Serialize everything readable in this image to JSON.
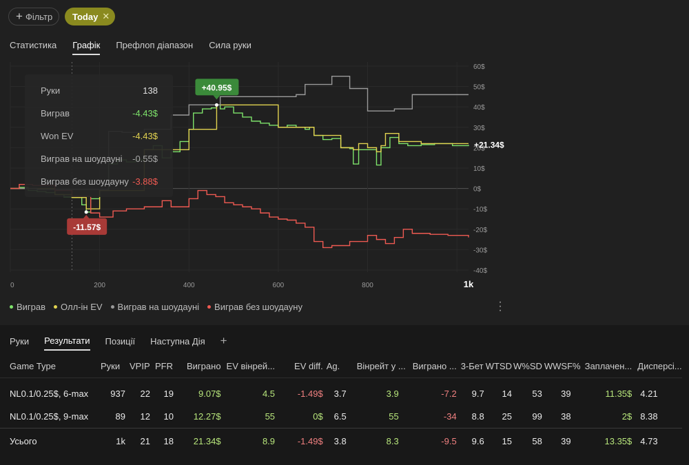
{
  "filters": {
    "add_label": "Фільтр",
    "active_chip": "Today"
  },
  "top_tabs": [
    "Статистика",
    "Графік",
    "Префлоп діапазон",
    "Сила руки"
  ],
  "top_active_tab": 1,
  "tooltip": {
    "rows": [
      {
        "label": "Руки",
        "value": "138"
      },
      {
        "label": "Виграв",
        "value": "-4.43$"
      },
      {
        "label": "Won EV",
        "value": "-4.43$"
      },
      {
        "label": "Виграв на шоудауні",
        "value": "-0.55$"
      },
      {
        "label": "Виграв без шоудауну",
        "value": "-3.88$"
      }
    ]
  },
  "chart_data": {
    "type": "line",
    "x_ticks": [
      "0",
      "200",
      "400",
      "600",
      "800",
      "1k"
    ],
    "xlim": [
      0,
      1026
    ],
    "y_ticks": [
      "60$",
      "50$",
      "40$",
      "30$",
      "20$",
      "10$",
      "0$",
      "-10$",
      "-20$",
      "-30$",
      "-40$"
    ],
    "ylim": [
      -41,
      62
    ],
    "max_label": "+40.95$",
    "min_label": "-11.57$",
    "end_label": "+21.34$",
    "cursor_x": 138,
    "series": [
      {
        "name": "Виграв",
        "color": "#7ee36b",
        "points": [
          [
            0,
            0
          ],
          [
            20,
            0.5
          ],
          [
            40,
            -1
          ],
          [
            60,
            -1.5
          ],
          [
            80,
            -2
          ],
          [
            100,
            -3
          ],
          [
            120,
            -4
          ],
          [
            138,
            -4.43
          ],
          [
            160,
            -8
          ],
          [
            170,
            -11.57
          ],
          [
            180,
            -5
          ],
          [
            200,
            -1
          ],
          [
            220,
            12
          ],
          [
            240,
            14
          ],
          [
            260,
            13
          ],
          [
            280,
            14
          ],
          [
            300,
            19
          ],
          [
            320,
            21
          ],
          [
            340,
            15
          ],
          [
            360,
            18
          ],
          [
            380,
            23
          ],
          [
            400,
            29
          ],
          [
            410,
            37
          ],
          [
            430,
            39
          ],
          [
            450,
            39.5
          ],
          [
            462,
            40.95
          ],
          [
            470,
            39
          ],
          [
            480,
            40
          ],
          [
            500,
            37
          ],
          [
            520,
            35
          ],
          [
            540,
            33
          ],
          [
            560,
            32
          ],
          [
            580,
            31
          ],
          [
            600,
            30
          ],
          [
            620,
            31
          ],
          [
            640,
            30
          ],
          [
            660,
            29
          ],
          [
            670,
            30
          ],
          [
            680,
            26
          ],
          [
            700,
            24
          ],
          [
            720,
            24.5
          ],
          [
            740,
            20
          ],
          [
            760,
            19.5
          ],
          [
            768,
            12
          ],
          [
            780,
            19
          ],
          [
            800,
            19
          ],
          [
            820,
            11.5
          ],
          [
            830,
            20
          ],
          [
            850,
            25
          ],
          [
            870,
            22
          ],
          [
            890,
            21
          ],
          [
            920,
            21.5
          ],
          [
            950,
            22
          ],
          [
            990,
            21
          ],
          [
            1026,
            21.34
          ]
        ]
      },
      {
        "name": "Олл-ін EV",
        "color": "#e2d350",
        "points": [
          [
            0,
            0
          ],
          [
            100,
            -3
          ],
          [
            138,
            -4.43
          ],
          [
            170,
            -10
          ],
          [
            200,
            -1
          ],
          [
            300,
            19
          ],
          [
            400,
            29
          ],
          [
            462,
            40.95
          ],
          [
            600,
            30
          ],
          [
            680,
            26
          ],
          [
            740,
            20
          ],
          [
            768,
            19
          ],
          [
            780,
            22
          ],
          [
            800,
            20
          ],
          [
            820,
            18
          ],
          [
            830,
            21
          ],
          [
            840,
            27
          ],
          [
            870,
            23
          ],
          [
            920,
            22
          ],
          [
            990,
            22
          ],
          [
            1026,
            22
          ]
        ]
      },
      {
        "name": "Виграв на шоудауні",
        "color": "#9a9a9a",
        "points": [
          [
            0,
            0
          ],
          [
            60,
            -0.5
          ],
          [
            138,
            -0.55
          ],
          [
            220,
            28
          ],
          [
            240,
            28
          ],
          [
            250,
            27.5
          ],
          [
            300,
            29
          ],
          [
            360,
            36
          ],
          [
            400,
            41
          ],
          [
            470,
            45
          ],
          [
            500,
            45
          ],
          [
            540,
            45
          ],
          [
            640,
            46
          ],
          [
            660,
            51
          ],
          [
            700,
            51
          ],
          [
            720,
            55
          ],
          [
            745,
            55
          ],
          [
            760,
            49
          ],
          [
            780,
            49
          ],
          [
            800,
            38
          ],
          [
            840,
            38
          ],
          [
            860,
            39
          ],
          [
            900,
            46
          ],
          [
            1026,
            46
          ]
        ]
      },
      {
        "name": "Виграв без шоудауну",
        "color": "#ef5a52",
        "points": [
          [
            0,
            0
          ],
          [
            20,
            2
          ],
          [
            50,
            1.5
          ],
          [
            100,
            -1
          ],
          [
            138,
            -3.88
          ],
          [
            180,
            -12
          ],
          [
            200,
            -14
          ],
          [
            230,
            -11
          ],
          [
            260,
            -10
          ],
          [
            300,
            -9
          ],
          [
            340,
            -6
          ],
          [
            360,
            -9
          ],
          [
            400,
            -5
          ],
          [
            420,
            -1
          ],
          [
            440,
            -3
          ],
          [
            460,
            -4
          ],
          [
            480,
            -7
          ],
          [
            500,
            -8
          ],
          [
            520,
            -9
          ],
          [
            540,
            -10
          ],
          [
            560,
            -12
          ],
          [
            580,
            -14
          ],
          [
            600,
            -15
          ],
          [
            620,
            -15.5
          ],
          [
            640,
            -17
          ],
          [
            660,
            -19
          ],
          [
            680,
            -26
          ],
          [
            700,
            -29
          ],
          [
            720,
            -28
          ],
          [
            760,
            -26
          ],
          [
            800,
            -23
          ],
          [
            820,
            -25
          ],
          [
            840,
            -27
          ],
          [
            860,
            -24
          ],
          [
            880,
            -20
          ],
          [
            900,
            -22
          ],
          [
            940,
            -22.5
          ],
          [
            980,
            -23
          ],
          [
            1026,
            -24
          ]
        ]
      }
    ]
  },
  "legend": [
    {
      "label": "Виграв",
      "color": "#7ee36b"
    },
    {
      "label": "Олл-ін EV",
      "color": "#e2d350"
    },
    {
      "label": "Виграв на шоудауні",
      "color": "#9a9a9a"
    },
    {
      "label": "Виграв без шоудауну",
      "color": "#ef5a52"
    }
  ],
  "bottom_tabs": [
    "Руки",
    "Результати",
    "Позиції",
    "Наступна Дія"
  ],
  "bottom_active_tab": 1,
  "table": {
    "headers": [
      "Game Type",
      "Руки",
      "VPIP",
      "PFR",
      "Виграно",
      "EV вінрей...",
      "EV diff.",
      "Ag.",
      "Вінрейт у ...",
      "Виграно ...",
      "3-Бет",
      "WTSD",
      "W%SD",
      "WWSF%",
      "Заплачен...",
      "Дисперсі..."
    ],
    "rows": [
      [
        "NL0.1/0.25$, 6-max",
        "937",
        "22",
        "19",
        "9.07$",
        "4.5",
        "-1.49$",
        "3.7",
        "3.9",
        "-7.2",
        "9.7",
        "14",
        "53",
        "39",
        "11.35$",
        "4.21"
      ],
      [
        "NL0.1/0.25$, 9-max",
        "89",
        "12",
        "10",
        "12.27$",
        "55",
        "0$",
        "6.5",
        "55",
        "-34",
        "8.8",
        "25",
        "99",
        "38",
        "2$",
        "8.38"
      ]
    ],
    "total": [
      "Усього",
      "1k",
      "21",
      "18",
      "21.34$",
      "8.9",
      "-1.49$",
      "3.8",
      "8.3",
      "-9.5",
      "9.6",
      "15",
      "58",
      "39",
      "13.35$",
      "4.73"
    ]
  }
}
